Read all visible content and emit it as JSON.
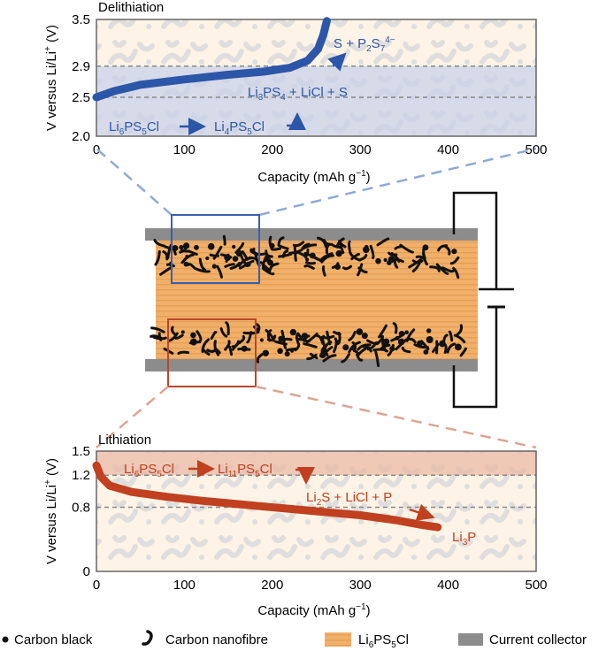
{
  "colors": {
    "delith_line": "#2c56a8",
    "lith_line": "#c0401f",
    "electrolyte": "#f0b06a",
    "collector": "#8c8c8c"
  },
  "chart_data": [
    {
      "type": "line",
      "title": "Delithiation",
      "xlabel_main": "Capacity (mAh g",
      "xlabel_sup": "−1",
      "xlabel_end": ")",
      "ylabel_main": "V versus Li/Li",
      "ylabel_sup": "+",
      "ylabel_end": " (V)",
      "xlim": [
        0,
        500
      ],
      "ylim": [
        2.0,
        3.5
      ],
      "xticks": [
        "0",
        "100",
        "200",
        "300",
        "400",
        "500"
      ],
      "yticks": [
        "2.0",
        "2.5",
        "2.9",
        "3.5"
      ],
      "dashed_levels": [
        2.5,
        2.9
      ],
      "series": [
        {
          "name": "delithiation",
          "x": [
            0,
            20,
            50,
            100,
            150,
            190,
            220,
            240,
            252,
            258,
            262
          ],
          "y": [
            2.5,
            2.58,
            2.66,
            2.73,
            2.79,
            2.83,
            2.88,
            2.97,
            3.12,
            3.3,
            3.48
          ]
        }
      ],
      "annotations": {
        "phase_a": {
          "base": "Li",
          "s1": "6",
          "mid": "PS",
          "s2": "5",
          "end": "Cl"
        },
        "phase_b": {
          "base": "Li",
          "s1": "4",
          "mid": "PS",
          "s2": "5",
          "end": "Cl"
        },
        "phase_c": {
          "base": "Li",
          "s1": "3",
          "mid": "PS",
          "s2": "4",
          "end": " + LiCl + S"
        },
        "phase_d": {
          "base": "S + P",
          "s1": "2",
          "mid": "S",
          "s2": "7",
          "sup": "4−"
        }
      }
    },
    {
      "type": "line",
      "title": "Lithiation",
      "xlabel_main": "Capacity (mAh g",
      "xlabel_sup": "−1",
      "xlabel_end": ")",
      "ylabel_main": "V versus Li/Li",
      "ylabel_sup": "+",
      "ylabel_end": " (V)",
      "xlim": [
        0,
        500
      ],
      "ylim": [
        0,
        1.5
      ],
      "xticks": [
        "0",
        "100",
        "200",
        "300",
        "400",
        "500"
      ],
      "yticks": [
        "0",
        "0.8",
        "1.2",
        "1.5"
      ],
      "dashed_levels": [
        0.8,
        1.2
      ],
      "series": [
        {
          "name": "lithiation",
          "x": [
            0,
            5,
            15,
            40,
            80,
            120,
            180,
            240,
            300,
            340,
            370,
            388
          ],
          "y": [
            1.32,
            1.18,
            1.07,
            0.99,
            0.93,
            0.88,
            0.82,
            0.76,
            0.7,
            0.64,
            0.58,
            0.55
          ]
        }
      ],
      "annotations": {
        "phase_a": {
          "base": "Li",
          "s1": "6",
          "mid": "PS",
          "s2": "5",
          "end": "Cl"
        },
        "phase_b": {
          "base": "Li",
          "s1": "11",
          "mid": "PS",
          "s2": "5",
          "end": "Cl"
        },
        "phase_c": {
          "base": "Li",
          "s1": "2",
          "end": "S + LiCl + P"
        },
        "phase_d": {
          "base": "Li",
          "s1": "3",
          "end": "P"
        }
      }
    }
  ],
  "legend": {
    "carbon_black": "Carbon black",
    "carbon_nanofibre": "Carbon nanofibre",
    "electrolyte_base": "Li",
    "electrolyte_s1": "6",
    "electrolyte_mid": "PS",
    "electrolyte_s2": "5",
    "electrolyte_end": "Cl",
    "current_collector": "Current collector"
  }
}
